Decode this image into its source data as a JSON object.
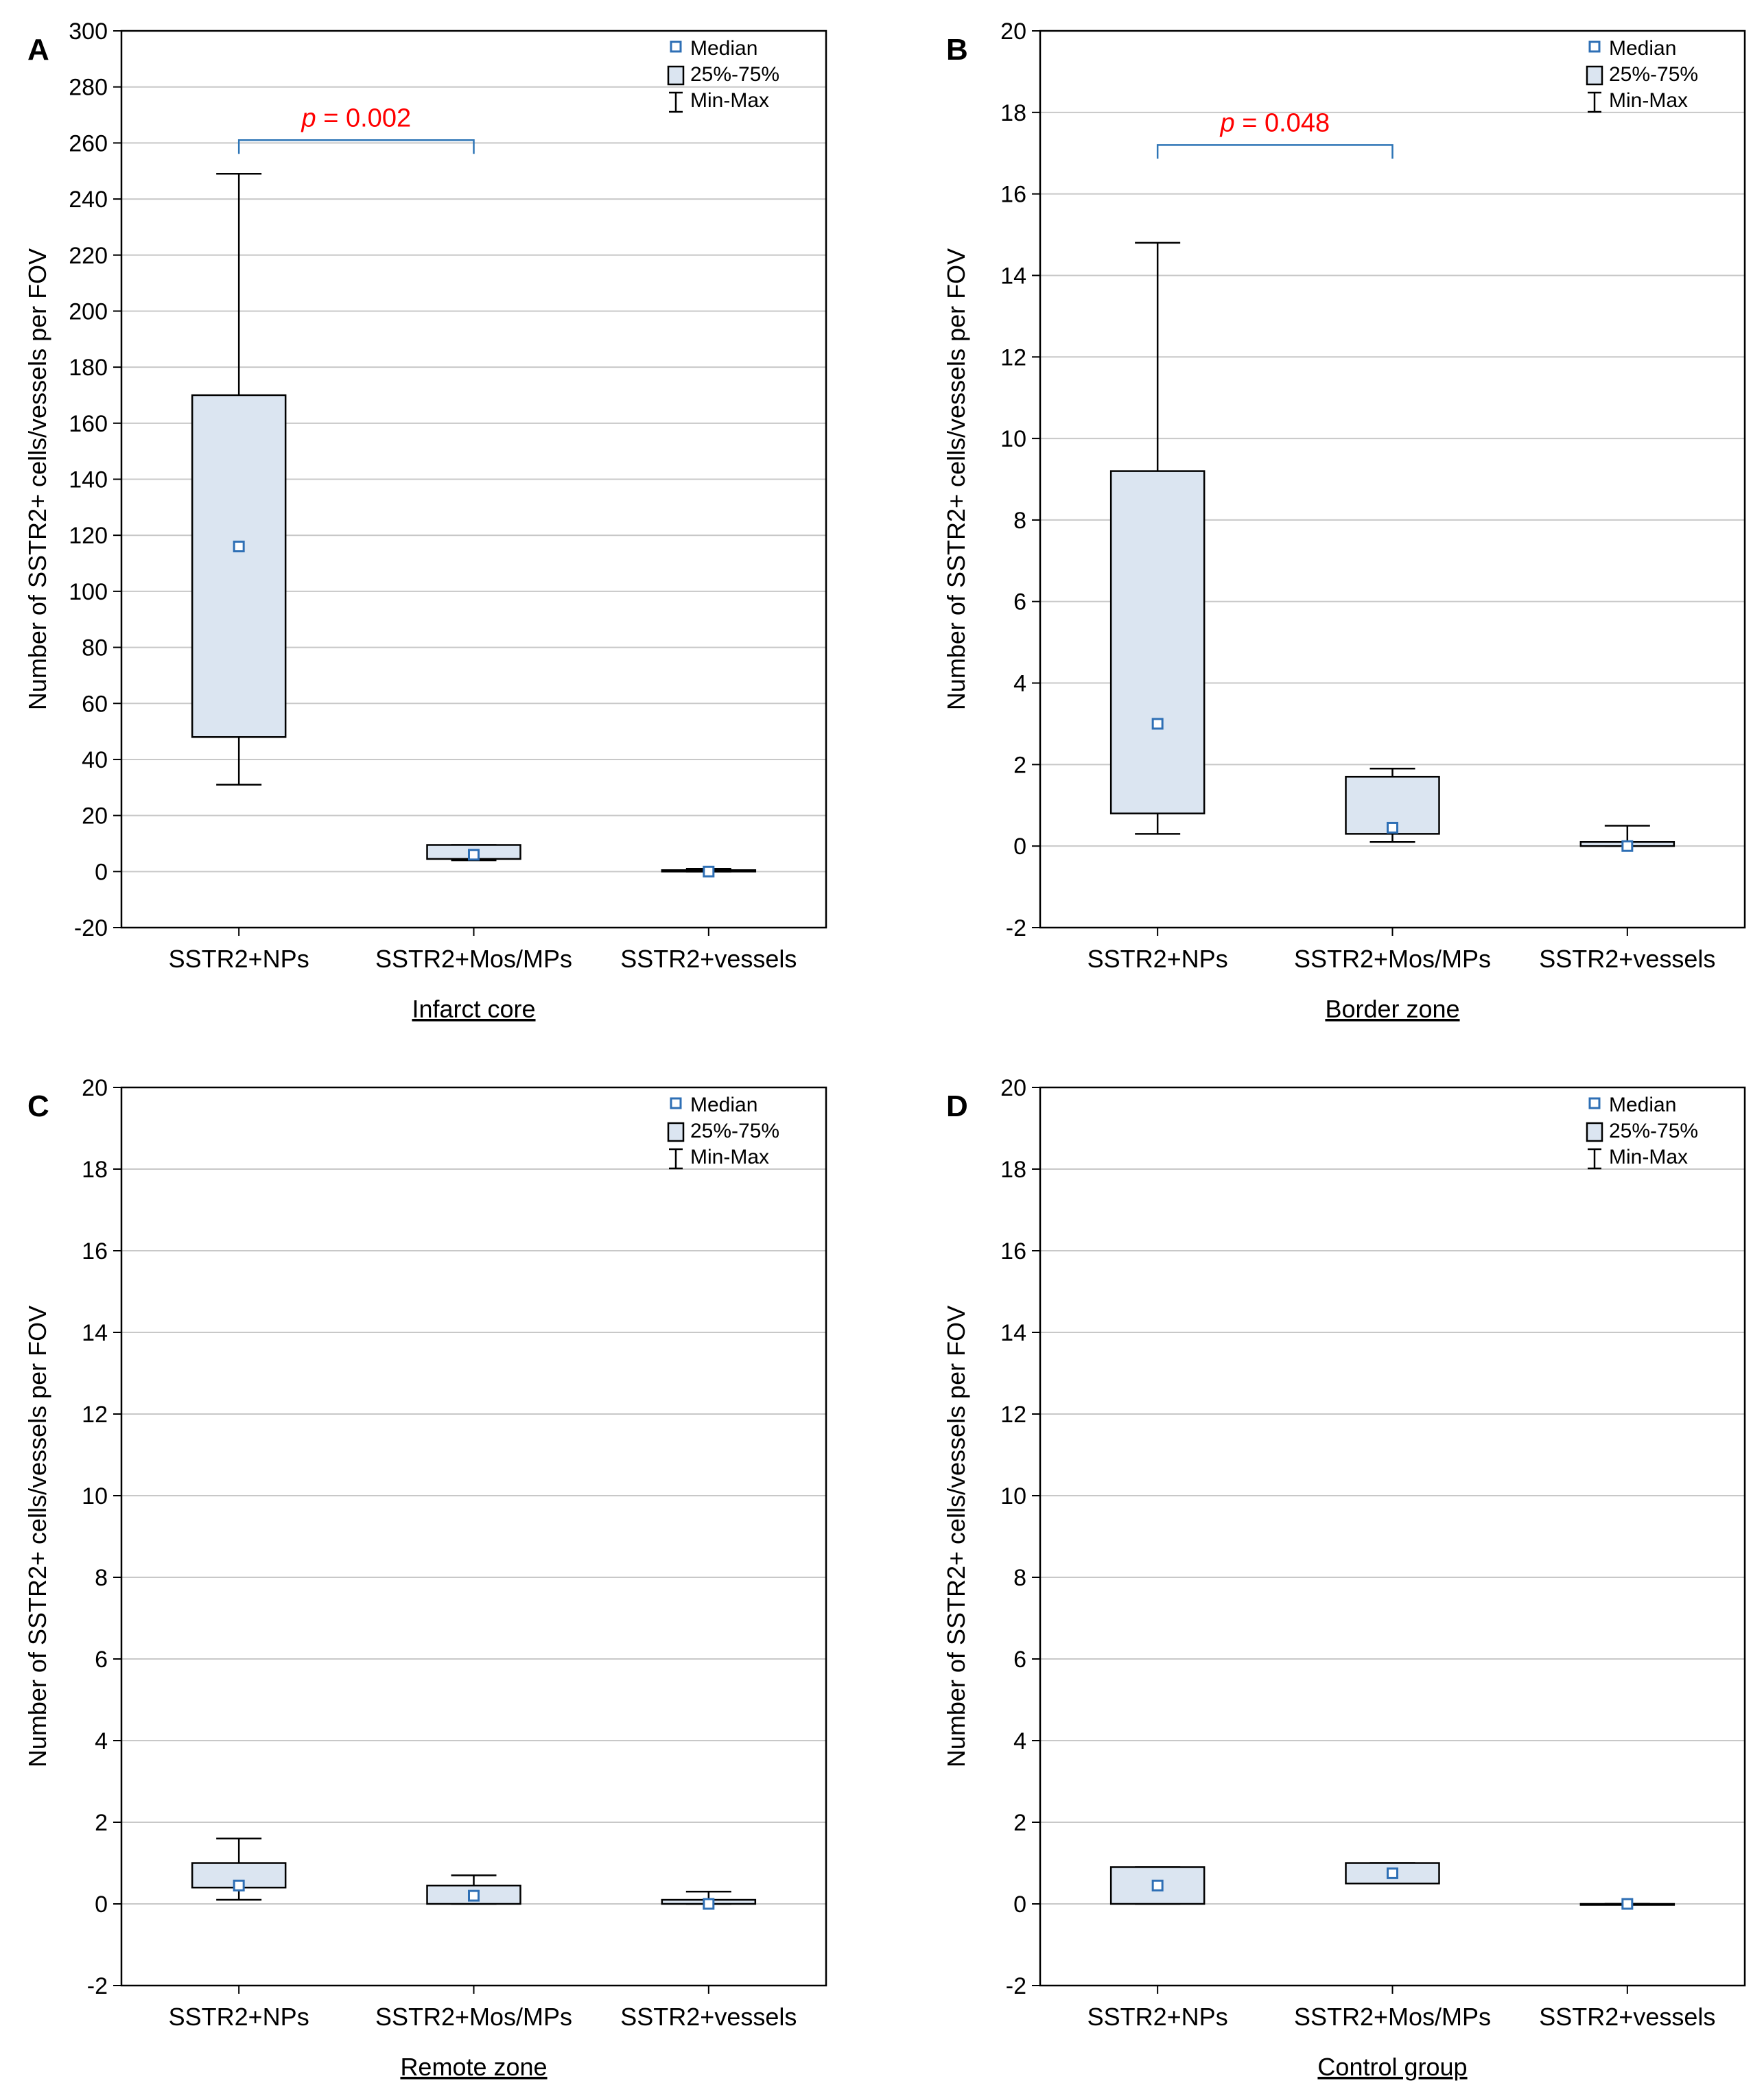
{
  "figure": {
    "y_axis_label": "Number of SSTR2+ cells/vessels per FOV",
    "legend": {
      "median": "Median",
      "box": "25%-75%",
      "whisker": "Min-Max"
    },
    "colors": {
      "box_fill": "#dbe5f1",
      "median_marker": "#2e6fb5",
      "bracket": "#2e75b6",
      "p_text": "#ff0000",
      "grid": "#c8c8c8",
      "axis": "#000000"
    }
  },
  "chart_data": [
    {
      "type": "box",
      "panel_label": "A",
      "xlabel": "Infarct core",
      "ylabel": "Number of SSTR2+ cells/vessels per FOV",
      "ylim": [
        -20,
        300
      ],
      "yticks": [
        -20,
        0,
        20,
        40,
        60,
        80,
        100,
        120,
        140,
        160,
        180,
        200,
        220,
        240,
        260,
        280,
        300
      ],
      "categories": [
        "SSTR2+NPs",
        "SSTR2+Mos/MPs",
        "SSTR2+vessels"
      ],
      "series": [
        {
          "name": "SSTR2+NPs",
          "min": 31,
          "q1": 48,
          "median": 116,
          "q3": 170,
          "max": 249
        },
        {
          "name": "SSTR2+Mos/MPs",
          "min": 4,
          "q1": 4.5,
          "median": 6,
          "q3": 9.5,
          "max": 9.5
        },
        {
          "name": "SSTR2+vessels",
          "min": 0,
          "q1": 0,
          "median": 0,
          "q3": 0.5,
          "max": 1
        }
      ],
      "bracket": {
        "from": 0,
        "to": 1,
        "y": 261,
        "p_prefix": "p",
        "p_value": " = 0.002"
      }
    },
    {
      "type": "box",
      "panel_label": "B",
      "xlabel": "Border zone",
      "ylabel": "Number of SSTR2+ cells/vessels per FOV",
      "ylim": [
        -2,
        20
      ],
      "yticks": [
        -2,
        0,
        2,
        4,
        6,
        8,
        10,
        12,
        14,
        16,
        18,
        20
      ],
      "categories": [
        "SSTR2+NPs",
        "SSTR2+Mos/MPs",
        "SSTR2+vessels"
      ],
      "series": [
        {
          "name": "SSTR2+NPs",
          "min": 0.3,
          "q1": 0.8,
          "median": 3,
          "q3": 9.2,
          "max": 14.8
        },
        {
          "name": "SSTR2+Mos/MPs",
          "min": 0.1,
          "q1": 0.3,
          "median": 0.45,
          "q3": 1.7,
          "max": 1.9
        },
        {
          "name": "SSTR2+vessels",
          "min": 0,
          "q1": 0,
          "median": 0,
          "q3": 0.1,
          "max": 0.5
        }
      ],
      "bracket": {
        "from": 0,
        "to": 1,
        "y": 17.2,
        "p_prefix": "p",
        "p_value": " = 0.048"
      }
    },
    {
      "type": "box",
      "panel_label": "C",
      "xlabel": "Remote zone",
      "ylabel": "Number of SSTR2+ cells/vessels per FOV",
      "ylim": [
        -2,
        20
      ],
      "yticks": [
        -2,
        0,
        2,
        4,
        6,
        8,
        10,
        12,
        14,
        16,
        18,
        20
      ],
      "categories": [
        "SSTR2+NPs",
        "SSTR2+Mos/MPs",
        "SSTR2+vessels"
      ],
      "series": [
        {
          "name": "SSTR2+NPs",
          "min": 0.1,
          "q1": 0.4,
          "median": 0.45,
          "q3": 1,
          "max": 1.6
        },
        {
          "name": "SSTR2+Mos/MPs",
          "min": 0,
          "q1": 0,
          "median": 0.2,
          "q3": 0.45,
          "max": 0.7
        },
        {
          "name": "SSTR2+vessels",
          "min": 0,
          "q1": 0,
          "median": 0,
          "q3": 0.1,
          "max": 0.3
        }
      ]
    },
    {
      "type": "box",
      "panel_label": "D",
      "xlabel": "Control group",
      "ylabel": "Number of SSTR2+ cells/vessels per FOV",
      "ylim": [
        -2,
        20
      ],
      "yticks": [
        -2,
        0,
        2,
        4,
        6,
        8,
        10,
        12,
        14,
        16,
        18,
        20
      ],
      "categories": [
        "SSTR2+NPs",
        "SSTR2+Mos/MPs",
        "SSTR2+vessels"
      ],
      "series": [
        {
          "name": "SSTR2+NPs",
          "min": 0,
          "q1": 0,
          "median": 0.45,
          "q3": 0.9,
          "max": 0.9
        },
        {
          "name": "SSTR2+Mos/MPs",
          "min": 0.5,
          "q1": 0.5,
          "median": 0.75,
          "q3": 1,
          "max": 1
        },
        {
          "name": "SSTR2+vessels",
          "min": 0,
          "q1": 0,
          "median": 0,
          "q3": 0,
          "max": 0
        }
      ]
    }
  ]
}
